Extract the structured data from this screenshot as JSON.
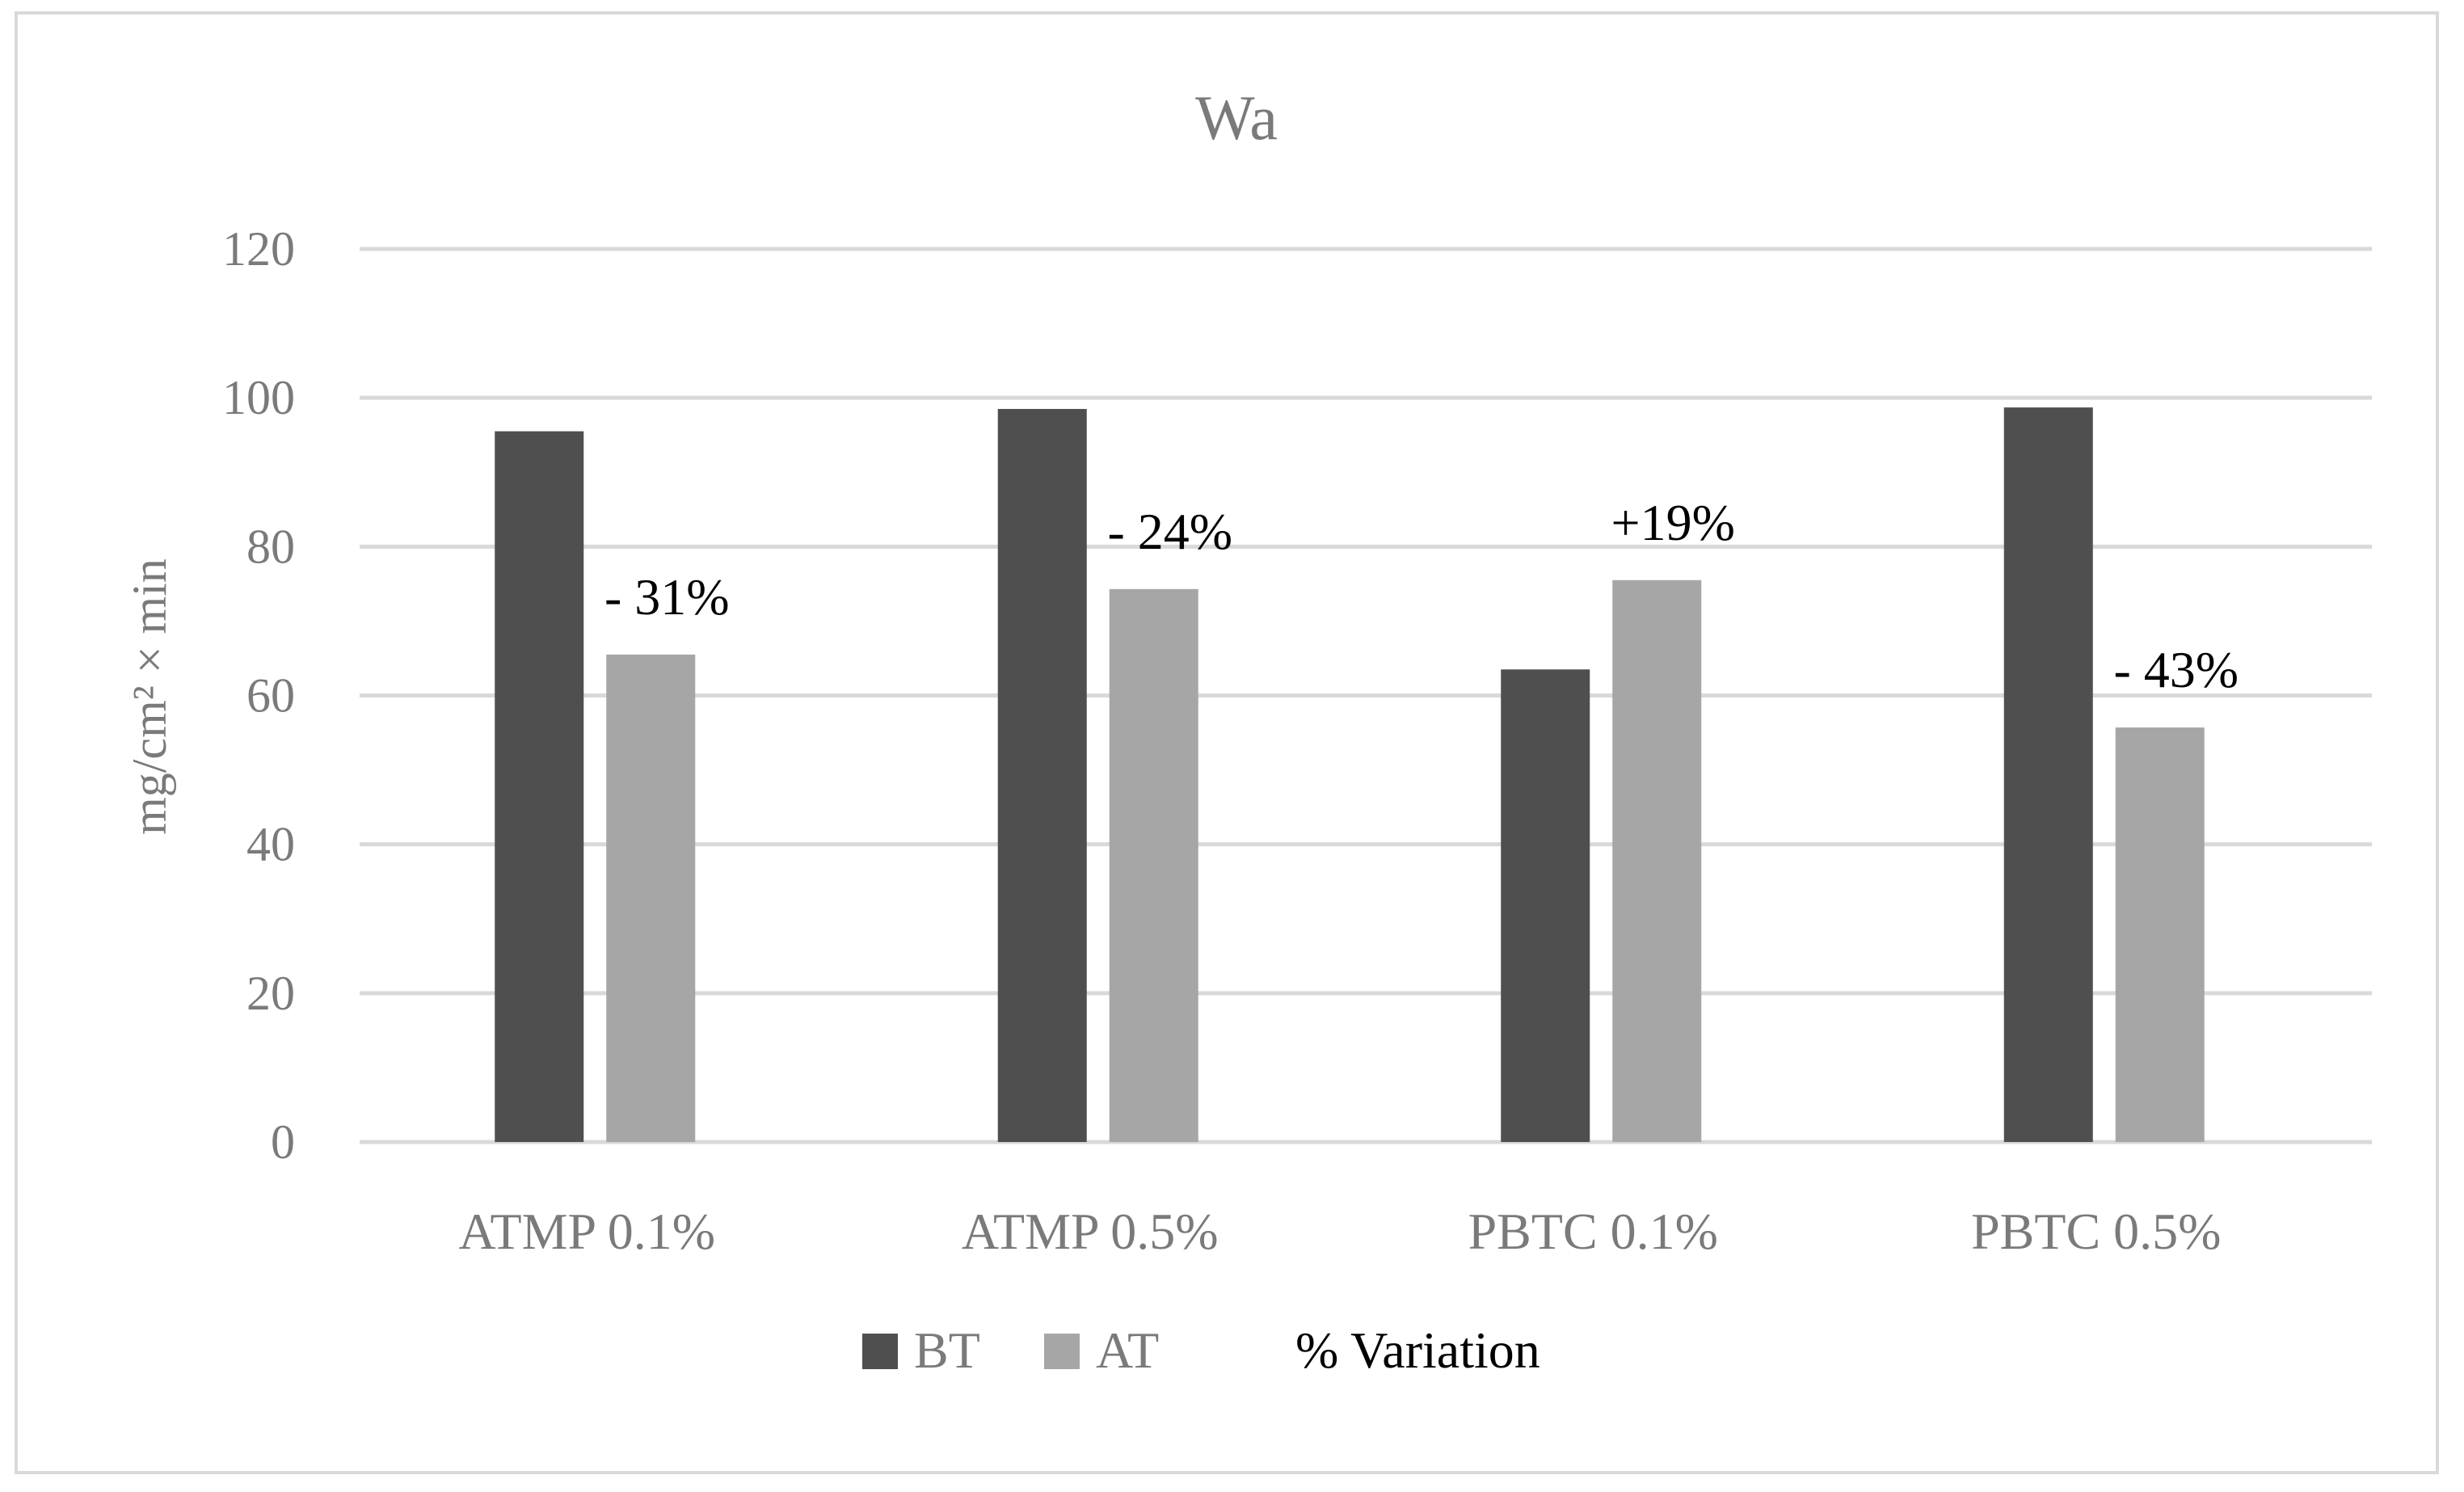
{
  "chart_data": {
    "type": "bar",
    "title": "Wa",
    "xlabel": "",
    "ylabel": "mg/cm² × min",
    "ylim": [
      0,
      120
    ],
    "yticks": [
      0,
      20,
      40,
      60,
      80,
      100,
      120
    ],
    "categories": [
      "ATMP 0.1%",
      "ATMP 0.5%",
      "PBTC 0.1%",
      "PBTC 0.5%"
    ],
    "series": [
      {
        "name": "BT",
        "color": "#4f4f4f",
        "values": [
          95.5,
          98.5,
          63.5,
          98.7
        ]
      },
      {
        "name": "AT",
        "color": "#a6a6a6",
        "values": [
          65.5,
          74.3,
          75.5,
          55.7
        ]
      }
    ],
    "annotations": [
      "- 31%",
      "- 24%",
      "+19%",
      "- 43%"
    ],
    "extra_legend": "% Variation",
    "grid": true,
    "legend_position": "bottom"
  }
}
